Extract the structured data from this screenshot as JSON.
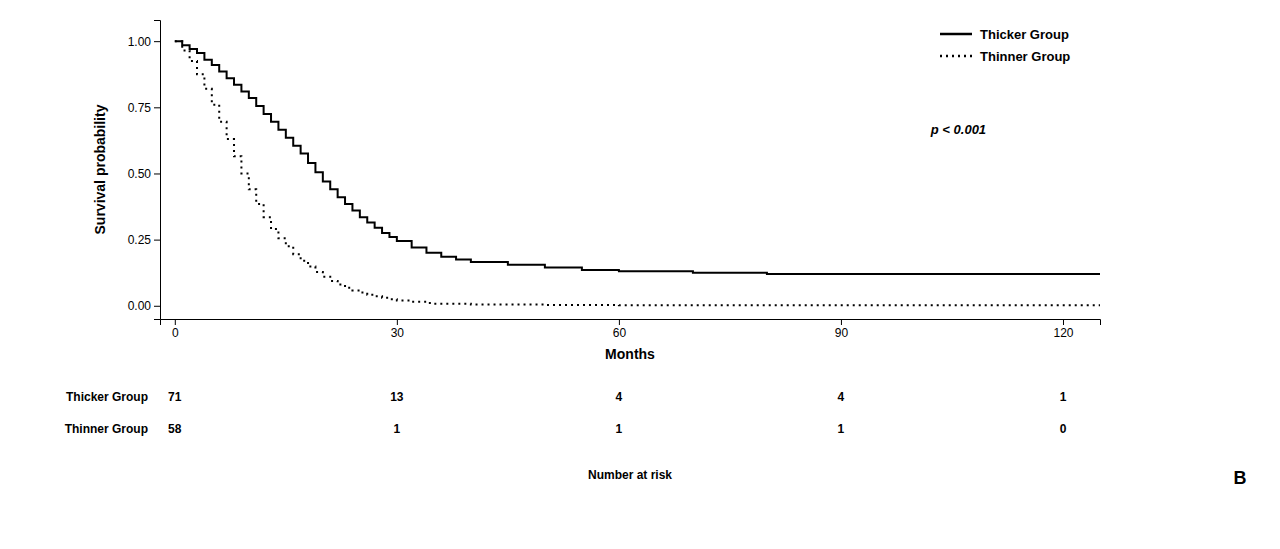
{
  "chart_data": {
    "type": "step",
    "xlabel": "Months",
    "ylabel": "Survival probability",
    "xlim": [
      -2,
      125
    ],
    "ylim": [
      -0.05,
      1.08
    ],
    "xticks": [
      0,
      30,
      60,
      90,
      120
    ],
    "yticks": [
      {
        "value": 0.0,
        "label": "0.00"
      },
      {
        "value": 0.25,
        "label": "0.25"
      },
      {
        "value": 0.5,
        "label": "0.50"
      },
      {
        "value": 0.75,
        "label": "0.75"
      },
      {
        "value": 1.0,
        "label": "1.00"
      }
    ],
    "grid": false,
    "legend": "upper right",
    "annotations": [
      "p < 0.001",
      "B"
    ],
    "series": [
      {
        "name": "Thicker Group",
        "color": "#000000",
        "line_style": "solid",
        "x": [
          0,
          1,
          2,
          3,
          4,
          5,
          6,
          7,
          8,
          9,
          10,
          11,
          12,
          13,
          14,
          15,
          16,
          17,
          18,
          19,
          20,
          21,
          22,
          23,
          24,
          25,
          26,
          27,
          28,
          29,
          30,
          32,
          34,
          36,
          38,
          40,
          45,
          50,
          55,
          60,
          70,
          80,
          90,
          100,
          110,
          120,
          125
        ],
        "values": [
          1.0,
          0.985,
          0.97,
          0.955,
          0.93,
          0.91,
          0.885,
          0.86,
          0.835,
          0.81,
          0.785,
          0.755,
          0.725,
          0.695,
          0.665,
          0.635,
          0.605,
          0.575,
          0.54,
          0.505,
          0.47,
          0.44,
          0.41,
          0.385,
          0.36,
          0.335,
          0.315,
          0.295,
          0.275,
          0.26,
          0.245,
          0.22,
          0.2,
          0.185,
          0.175,
          0.165,
          0.155,
          0.145,
          0.135,
          0.13,
          0.125,
          0.12,
          0.12,
          0.12,
          0.12,
          0.12,
          0.12
        ]
      },
      {
        "name": "Thinner Group",
        "color": "#000000",
        "line_style": "dotted",
        "x": [
          0,
          1,
          2,
          3,
          4,
          5,
          6,
          7,
          8,
          9,
          10,
          11,
          12,
          13,
          14,
          15,
          16,
          17,
          18,
          19,
          20,
          21,
          22,
          23,
          24,
          25,
          26,
          27,
          28,
          29,
          30,
          32,
          34,
          35,
          40,
          50,
          60,
          70,
          80,
          90,
          100,
          110,
          120,
          125
        ],
        "values": [
          1.0,
          0.965,
          0.925,
          0.875,
          0.82,
          0.76,
          0.695,
          0.63,
          0.565,
          0.5,
          0.44,
          0.385,
          0.335,
          0.29,
          0.255,
          0.225,
          0.195,
          0.17,
          0.148,
          0.128,
          0.11,
          0.094,
          0.08,
          0.068,
          0.058,
          0.05,
          0.042,
          0.036,
          0.03,
          0.025,
          0.02,
          0.015,
          0.01,
          0.008,
          0.005,
          0.003,
          0.002,
          0.002,
          0.002,
          0.002,
          0.002,
          0.002,
          0.002,
          0.002
        ]
      }
    ],
    "risk_table": {
      "title": "Number at risk",
      "times": [
        0,
        30,
        60,
        90,
        120
      ],
      "rows": [
        {
          "name": "Thicker Group",
          "values": [
            71,
            13,
            4,
            4,
            1
          ]
        },
        {
          "name": "Thinner Group",
          "values": [
            58,
            1,
            1,
            1,
            0
          ]
        }
      ]
    }
  }
}
